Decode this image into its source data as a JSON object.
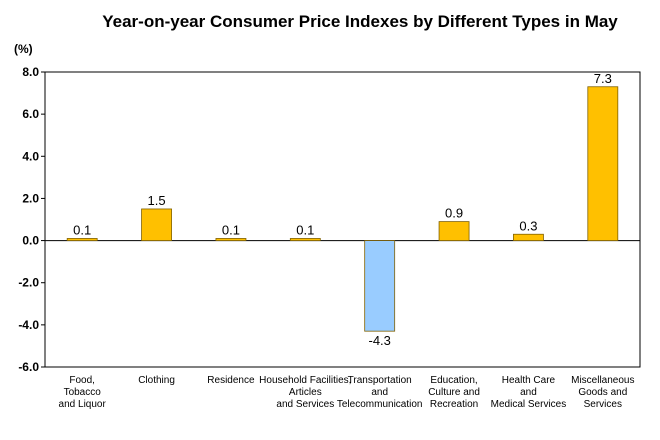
{
  "chart_data": {
    "type": "bar",
    "title": "Year-on-year Consumer Price Indexes by Different Types in May",
    "ylabel": "(%)",
    "ylim": [
      -6.0,
      8.0
    ],
    "yticks": [
      "8.0",
      "6.0",
      "4.0",
      "2.0",
      "0.0",
      "-2.0",
      "-4.0",
      "-6.0"
    ],
    "categories": [
      [
        "Food,",
        "Tobacco",
        "and Liquor"
      ],
      [
        "Clothing"
      ],
      [
        "Residence"
      ],
      [
        "Household Facilities,",
        "Articles",
        "and Services"
      ],
      [
        "Transportation",
        "and",
        "Telecommunication"
      ],
      [
        "Education,",
        "Culture and",
        "Recreation"
      ],
      [
        "Health Care",
        "and",
        "Medical Services"
      ],
      [
        "Miscellaneous",
        "Goods and",
        "Services"
      ]
    ],
    "values": [
      0.1,
      1.5,
      0.1,
      0.1,
      -4.3,
      0.9,
      0.3,
      7.3
    ],
    "value_labels": [
      "0.1",
      "1.5",
      "0.1",
      "0.1",
      "-4.3",
      "0.9",
      "0.3",
      "7.3"
    ],
    "grid": false,
    "colors": {
      "positive": "#FFC000",
      "negative": "#99CCFF",
      "stroke": "#7F6000",
      "axis": "#000000"
    }
  }
}
